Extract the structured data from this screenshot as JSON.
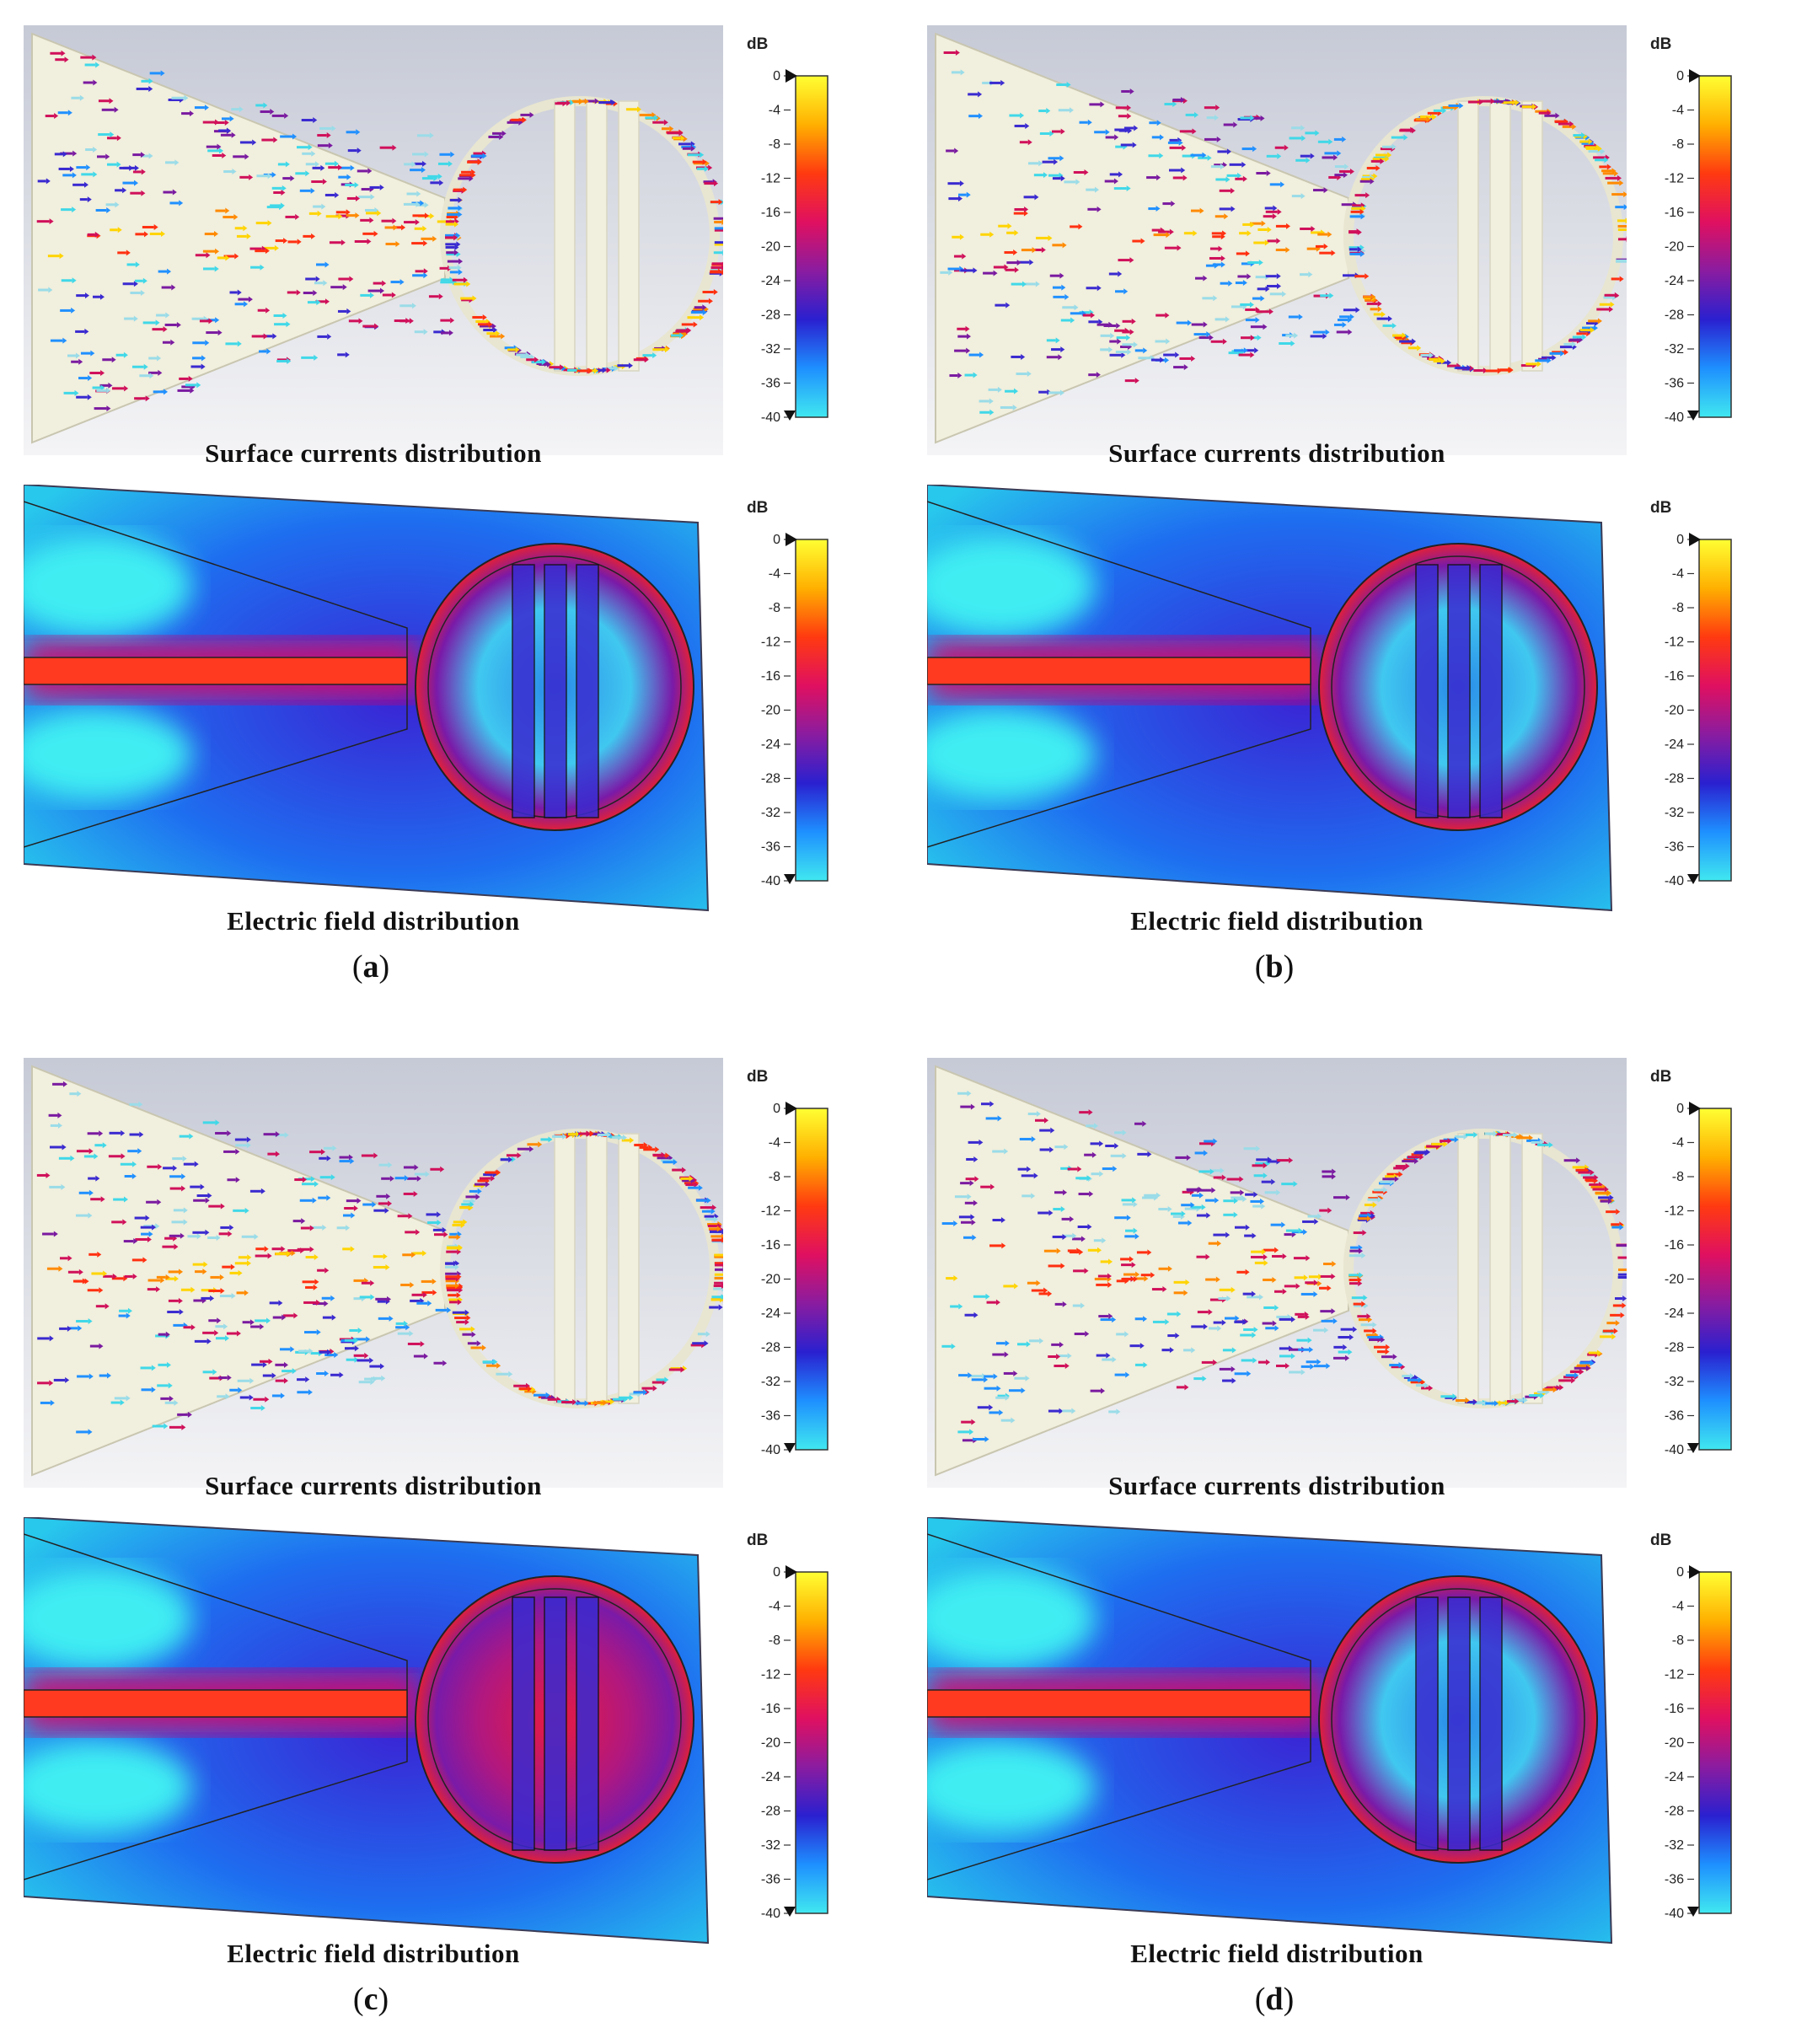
{
  "colorbar": {
    "unit": "dB",
    "ticks": [
      "0",
      "-4",
      "-8",
      "-12",
      "-16",
      "-20",
      "-24",
      "-28",
      "-32",
      "-36",
      "-40"
    ],
    "colors": [
      "#ffff33",
      "#ffb000",
      "#ff3a10",
      "#e01060",
      "#8a1ca0",
      "#2a20d0",
      "#1e90ff",
      "#40e8f0"
    ]
  },
  "captions": {
    "surface": "Surface currents distribution",
    "efield": "Electric field distribution"
  },
  "panels": [
    {
      "id": "a",
      "paren_open": "(",
      "letter": "a",
      "paren_close": ")"
    },
    {
      "id": "b",
      "paren_open": "(",
      "letter": "b",
      "paren_close": ")"
    },
    {
      "id": "c",
      "paren_open": "(",
      "letter": "c",
      "paren_close": ")"
    },
    {
      "id": "d",
      "paren_open": "(",
      "letter": "d",
      "paren_close": ")"
    }
  ]
}
